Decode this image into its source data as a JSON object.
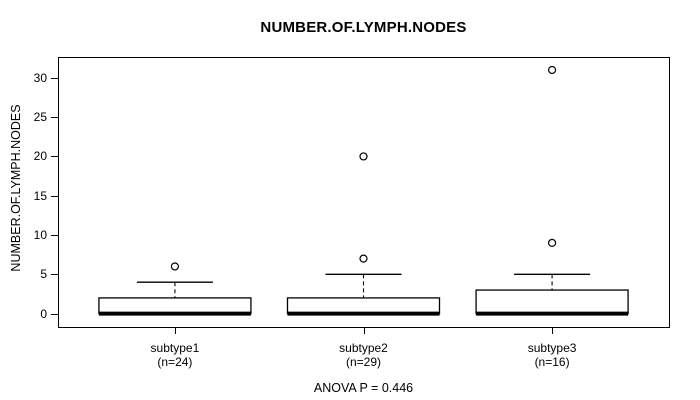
{
  "chart_data": {
    "type": "boxplot",
    "title": "NUMBER.OF.LYMPH.NODES",
    "ylabel": "NUMBER.OF.LYMPH.NODES",
    "xlabel": "",
    "annotation": "ANOVA P = 0.446",
    "anova_p": 0.446,
    "y_ticks": [
      0,
      5,
      10,
      15,
      20,
      25,
      30
    ],
    "ylim": [
      -1.7,
      32.65
    ],
    "xlim": [
      0.38,
      3.62
    ],
    "grid": false,
    "legend": "none",
    "groups": [
      {
        "label": "subtype1",
        "sublabel": "(n=24)",
        "n": 24,
        "position": 1,
        "whisker_low": 0,
        "q1": 0,
        "median": 0,
        "q3": 2,
        "whisker_high": 4,
        "outliers": [
          6
        ]
      },
      {
        "label": "subtype2",
        "sublabel": "(n=29)",
        "n": 29,
        "position": 2,
        "whisker_low": 0,
        "q1": 0,
        "median": 0,
        "q3": 2,
        "whisker_high": 5,
        "outliers": [
          7,
          20
        ]
      },
      {
        "label": "subtype3",
        "sublabel": "(n=16)",
        "n": 16,
        "position": 3,
        "whisker_low": 0,
        "q1": 0,
        "median": 0,
        "q3": 3,
        "whisker_high": 5,
        "outliers": [
          9,
          31
        ]
      }
    ],
    "colors": {
      "line": "#000000",
      "box_fill": "#ffffff",
      "background": "#ffffff"
    }
  }
}
